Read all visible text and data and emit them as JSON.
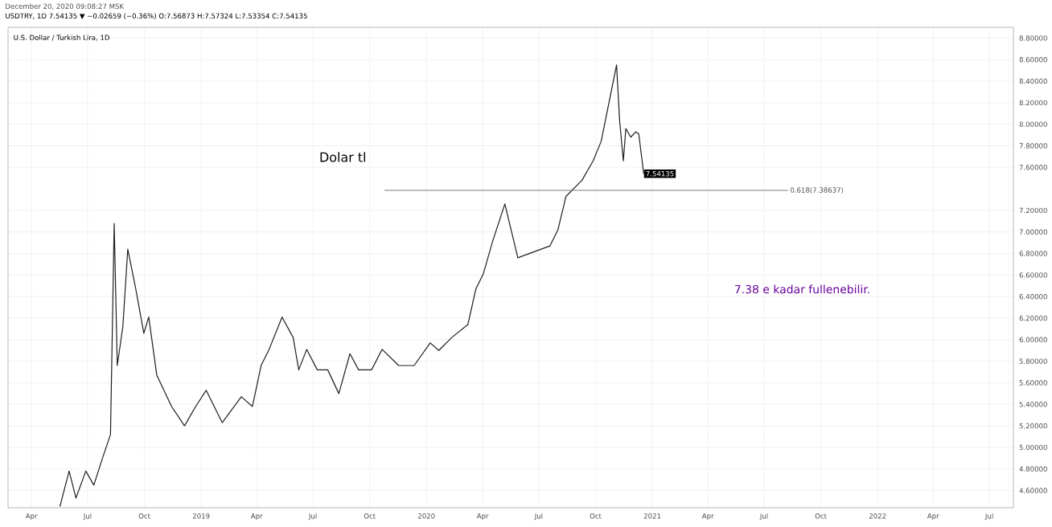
{
  "chart_data": {
    "type": "line",
    "title": "USDTRY, 1D 7.54135 ▼ −0.02659 (−0.36%) O:7.56873 H:7.57324 L:7.53354 C:7.54135",
    "subtitle": "U.S. Dollar / Turkish Lira, 1D",
    "annotations": [
      "December 20, 2020 09:08:27 MSK",
      "Dolar tl",
      "7.38 e kadar fullenebilir.",
      {
        "text": "7.54135",
        "x": "2020-12-18",
        "y": 7.54135
      }
    ],
    "series": [
      {
        "color": "#1e1e1e",
        "x": [
          "2018-05-17",
          "2018-06-01",
          "2018-06-12",
          "2018-06-28",
          "2018-07-11",
          "2018-07-25",
          "2018-08-07",
          "2018-08-13",
          "2018-08-18",
          "2018-08-27",
          "2018-09-04",
          "2018-09-17",
          "2018-09-30",
          "2018-10-08",
          "2018-10-21",
          "2018-11-14",
          "2018-12-05",
          "2018-12-23",
          "2019-01-09",
          "2019-02-04",
          "2019-03-07",
          "2019-03-25",
          "2019-04-08",
          "2019-04-21",
          "2019-05-12",
          "2019-05-30",
          "2019-06-08",
          "2019-06-21",
          "2019-07-08",
          "2019-07-25",
          "2019-08-12",
          "2019-08-30",
          "2019-09-13",
          "2019-10-04",
          "2019-10-21",
          "2019-11-17",
          "2019-12-12",
          "2020-01-07",
          "2020-01-21",
          "2020-02-11",
          "2020-03-08",
          "2020-03-21",
          "2020-04-02",
          "2020-04-17",
          "2020-05-07",
          "2020-05-28",
          "2020-07-19",
          "2020-08-01",
          "2020-08-14",
          "2020-09-09",
          "2020-09-27",
          "2020-10-10",
          "2020-11-04",
          "2020-11-09",
          "2020-11-15",
          "2020-11-19",
          "2020-11-27",
          "2020-12-05",
          "2020-12-10",
          "2020-12-18"
        ],
        "values": [
          4.45,
          4.78,
          4.53,
          4.78,
          4.65,
          4.9,
          5.12,
          7.08,
          5.76,
          6.12,
          6.84,
          6.47,
          6.06,
          6.21,
          5.67,
          5.38,
          5.2,
          5.38,
          5.53,
          5.23,
          5.47,
          5.38,
          5.76,
          5.91,
          6.21,
          6.02,
          5.72,
          5.91,
          5.72,
          5.72,
          5.5,
          5.87,
          5.72,
          5.72,
          5.91,
          5.76,
          5.76,
          5.97,
          5.9,
          6.02,
          6.14,
          6.47,
          6.61,
          6.91,
          7.26,
          6.76,
          6.87,
          7.02,
          7.33,
          7.48,
          7.66,
          7.84,
          8.55,
          8.03,
          7.66,
          7.96,
          7.88,
          7.93,
          7.91,
          7.54
        ]
      },
      {
        "name": "0.618(7.38637)",
        "color": "#787b86",
        "x": [
          "2019-10-25",
          "2021-08-09"
        ],
        "values": [
          7.38637,
          7.38637
        ]
      }
    ],
    "xlim": [
      "2018-02-22",
      "2022-08-09"
    ],
    "xticks": [
      {
        "value": "2018-04-01",
        "label": "Apr"
      },
      {
        "value": "2018-07-01",
        "label": "Jul"
      },
      {
        "value": "2018-10-01",
        "label": "Oct"
      },
      {
        "value": "2019-01-01",
        "label": "2019"
      },
      {
        "value": "2019-04-01",
        "label": "Apr"
      },
      {
        "value": "2019-07-01",
        "label": "Jul"
      },
      {
        "value": "2019-10-01",
        "label": "Oct"
      },
      {
        "value": "2020-01-01",
        "label": "2020"
      },
      {
        "value": "2020-04-01",
        "label": "Apr"
      },
      {
        "value": "2020-07-01",
        "label": "Jul"
      },
      {
        "value": "2020-10-01",
        "label": "Oct"
      },
      {
        "value": "2021-01-01",
        "label": "2021"
      },
      {
        "value": "2021-04-01",
        "label": "Apr"
      },
      {
        "value": "2021-07-01",
        "label": "Jul"
      },
      {
        "value": "2021-10-01",
        "label": "Oct"
      },
      {
        "value": "2022-01-01",
        "label": "2022"
      },
      {
        "value": "2022-04-01",
        "label": "Apr"
      },
      {
        "value": "2022-07-01",
        "label": "Jul"
      }
    ],
    "ylim": [
      4.44,
      8.9
    ],
    "yticks": [
      {
        "value": 4.6,
        "label": "4.60000"
      },
      {
        "value": 4.8,
        "label": "4.80000"
      },
      {
        "value": 5.0,
        "label": "5.00000"
      },
      {
        "value": 5.2,
        "label": "5.20000"
      },
      {
        "value": 5.4,
        "label": "5.40000"
      },
      {
        "value": 5.6,
        "label": "5.60000"
      },
      {
        "value": 5.8,
        "label": "5.80000"
      },
      {
        "value": 6.0,
        "label": "6.00000"
      },
      {
        "value": 6.2,
        "label": "6.20000"
      },
      {
        "value": 6.4,
        "label": "6.40000"
      },
      {
        "value": 6.6,
        "label": "6.60000"
      },
      {
        "value": 6.8,
        "label": "6.80000"
      },
      {
        "value": 7.0,
        "label": "7.00000"
      },
      {
        "value": 7.2,
        "label": "7.20000"
      },
      {
        "value": 7.6,
        "label": "7.60000"
      },
      {
        "value": 7.8,
        "label": "7.80000"
      },
      {
        "value": 8.0,
        "label": "8.00000"
      },
      {
        "value": 8.2,
        "label": "8.20000"
      },
      {
        "value": 8.4,
        "label": "8.40000"
      },
      {
        "value": 8.6,
        "label": "8.60000"
      },
      {
        "value": 8.8,
        "label": "8.80000"
      }
    ],
    "grid": true,
    "marker": "none",
    "line_style": "solid"
  }
}
